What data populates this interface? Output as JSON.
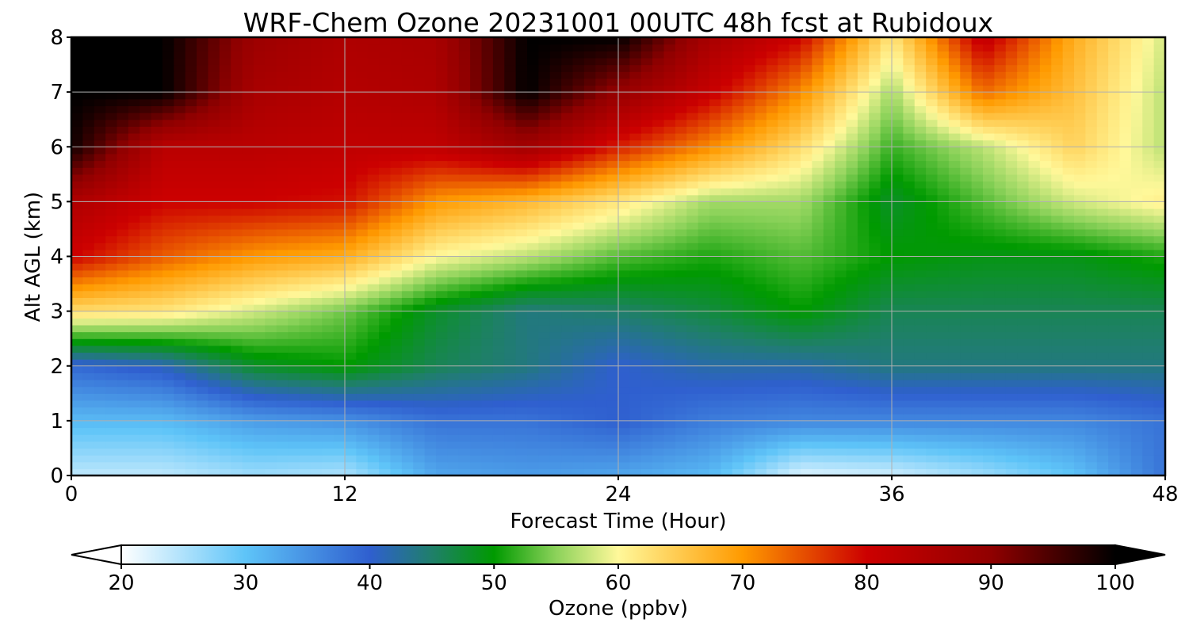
{
  "chart_data": {
    "type": "heatmap",
    "title": "WRF-Chem Ozone  20231001 00UTC 48h fcst at Rubidoux",
    "xlabel": "Forecast Time (Hour)",
    "ylabel": "Alt AGL (km)",
    "xlim": [
      0,
      48
    ],
    "ylim": [
      0,
      8
    ],
    "x_ticks": [
      0,
      12,
      24,
      36,
      48
    ],
    "y_ticks": [
      0,
      1,
      2,
      3,
      4,
      5,
      6,
      7,
      8
    ],
    "grid": true,
    "colorbar": {
      "label": "Ozone  (ppbv)",
      "min": 20,
      "max": 100,
      "ticks": [
        20,
        30,
        40,
        50,
        60,
        70,
        80,
        90,
        100
      ],
      "extend": "both",
      "stops": [
        {
          "v": 20,
          "c": "#ffffff"
        },
        {
          "v": 30,
          "c": "#5ec4f8"
        },
        {
          "v": 40,
          "c": "#2f5fcf"
        },
        {
          "v": 45,
          "c": "#1f7f6a"
        },
        {
          "v": 50,
          "c": "#009a00"
        },
        {
          "v": 55,
          "c": "#8cd25a"
        },
        {
          "v": 60,
          "c": "#fff89a"
        },
        {
          "v": 70,
          "c": "#ff9a00"
        },
        {
          "v": 80,
          "c": "#cc0000"
        },
        {
          "v": 90,
          "c": "#900000"
        },
        {
          "v": 100,
          "c": "#000000"
        }
      ]
    },
    "z_axis": {
      "hours": [
        0,
        4,
        8,
        12,
        16,
        20,
        24,
        28,
        32,
        36,
        40,
        44,
        48
      ],
      "altitudes_km": [
        0,
        1,
        2,
        3,
        4,
        5,
        6,
        7,
        8
      ],
      "ozone_ppbv": [
        [
          24,
          24,
          26,
          25,
          33,
          34,
          33,
          31,
          22,
          23,
          26,
          30,
          38
        ],
        [
          31,
          31,
          34,
          35,
          38,
          38,
          40,
          37,
          36,
          36,
          36,
          36,
          38
        ],
        [
          39,
          41,
          48,
          50,
          46,
          44,
          40,
          42,
          42,
          44,
          44,
          44,
          44
        ],
        [
          63,
          62,
          58,
          54,
          48,
          44,
          45,
          47,
          50,
          46,
          46,
          46,
          46
        ],
        [
          80,
          74,
          70,
          68,
          60,
          57,
          53,
          51,
          53,
          50,
          49,
          49,
          51
        ],
        [
          85,
          80,
          80,
          79,
          70,
          67,
          62,
          56,
          56,
          48,
          53,
          58,
          61
        ],
        [
          99,
          83,
          83,
          82,
          82,
          87,
          78,
          71,
          63,
          52,
          57,
          64,
          57
        ],
        [
          100,
          100,
          86,
          84,
          85,
          100,
          89,
          81,
          71,
          56,
          73,
          66,
          57
        ],
        [
          100,
          100,
          88,
          85,
          86,
          100,
          100,
          86,
          80,
          62,
          82,
          68,
          58
        ]
      ]
    }
  }
}
